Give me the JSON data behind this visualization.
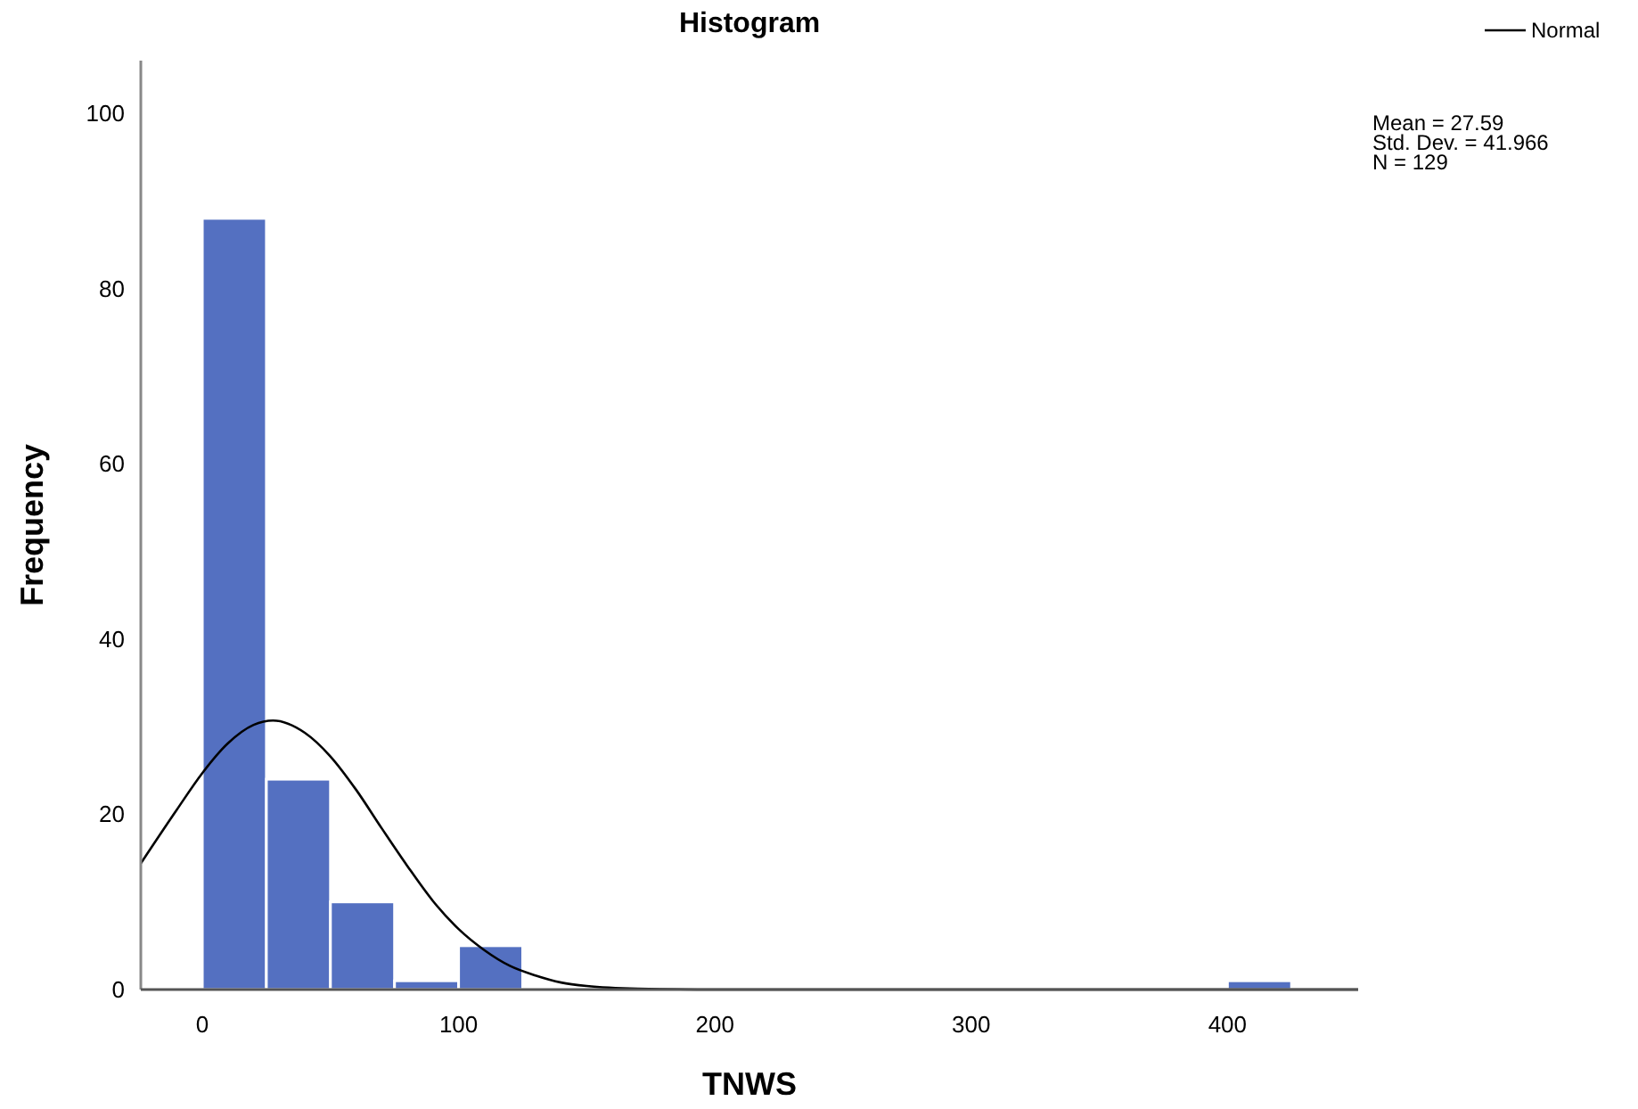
{
  "chart_data": {
    "type": "histogram",
    "title": "Histogram",
    "xlabel": "TNWS",
    "ylabel": "Frequency",
    "bins": [
      0,
      25,
      50,
      75,
      100,
      125,
      150,
      175,
      200,
      225,
      250,
      275,
      300,
      325,
      350,
      375,
      400,
      425
    ],
    "values": [
      88,
      24,
      10,
      1,
      5,
      0,
      0,
      0,
      0,
      0,
      0,
      0,
      0,
      0,
      0,
      0,
      1
    ],
    "color": "#5470c1",
    "series": [
      {
        "name": "Normal",
        "type": "line",
        "color": "#000000",
        "x": [
          -24,
          -10,
          0,
          10,
          20,
          27.59,
          40,
          50,
          60,
          70,
          80,
          90,
          100,
          110,
          120,
          130,
          140,
          150,
          170,
          200,
          250,
          300,
          451
        ],
        "values": [
          14.4,
          20.5,
          24.7,
          28.1,
          30.2,
          30.7,
          29.3,
          26.6,
          22.8,
          18.4,
          14.1,
          10.1,
          6.9,
          4.5,
          2.7,
          1.6,
          0.8,
          0.4,
          0.1,
          0,
          0,
          0,
          0
        ]
      }
    ],
    "xlim": [
      -24,
      451
    ],
    "xticks": [
      0,
      100,
      200,
      300,
      400
    ],
    "ylim": [
      0,
      106
    ],
    "yticks": [
      0,
      20,
      40,
      60,
      80,
      100
    ],
    "grid": false,
    "legend": "top right",
    "annotations": [
      "Mean = 27.59",
      "Std. Dev. = 41.966",
      "N = 129"
    ]
  }
}
